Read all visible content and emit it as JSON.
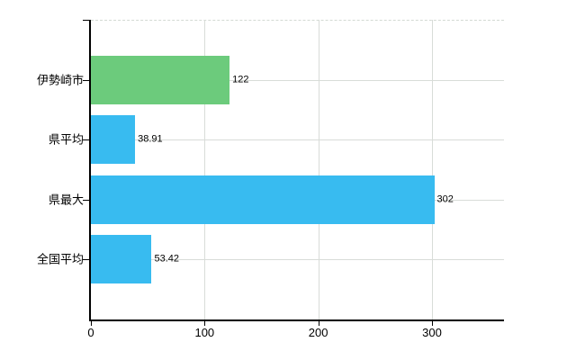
{
  "chart_data": {
    "type": "bar",
    "orientation": "horizontal",
    "title": "",
    "categories": [
      "伊勢崎市",
      "県平均",
      "県最大",
      "全国平均"
    ],
    "series": [
      {
        "name": "value",
        "values": [
          122,
          38.91,
          302,
          53.42
        ]
      }
    ],
    "value_labels": [
      "122",
      "38.91",
      "302",
      "53.42"
    ],
    "bar_colors": [
      "#6ccb7c",
      "#38bbf0",
      "#38bbf0",
      "#38bbf0"
    ],
    "x_tick_labels": [
      "0",
      "100",
      "200",
      "300"
    ],
    "x_tick_values": [
      0,
      100,
      200,
      300
    ],
    "xlim": [
      0,
      363
    ],
    "grid": true,
    "legend": "none",
    "colors": {
      "axis": "#000000",
      "gridline": "#d8dcd8",
      "background": "#ffffff",
      "text": "#000000"
    }
  }
}
